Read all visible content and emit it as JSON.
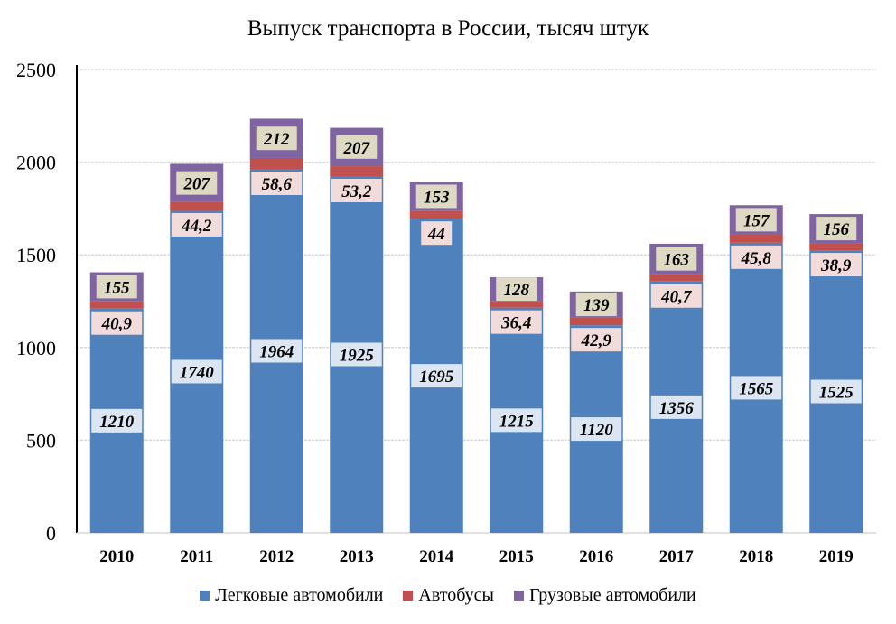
{
  "chart_data": {
    "type": "bar",
    "stacked": true,
    "title": "Выпуск транспорта в России, тысяч штук",
    "xlabel": "",
    "ylabel": "",
    "categories": [
      "2010",
      "2011",
      "2012",
      "2013",
      "2014",
      "2015",
      "2016",
      "2017",
      "2018",
      "2019"
    ],
    "ylim": [
      0,
      2500
    ],
    "yticks": [
      0,
      500,
      1000,
      1500,
      2000,
      2500
    ],
    "grid": true,
    "legend_position": "bottom",
    "series": [
      {
        "name": "Легковые автомобили",
        "color": "#4f81bd",
        "label_bg": "#dce6f2",
        "values": [
          1210,
          1740,
          1964,
          1925,
          1695,
          1215,
          1120,
          1356,
          1565,
          1525
        ],
        "labels": [
          "1210",
          "1740",
          "1964",
          "1925",
          "1695",
          "1215",
          "1120",
          "1356",
          "1565",
          "1525"
        ]
      },
      {
        "name": "Автобусы",
        "color": "#c0504d",
        "label_bg": "#f2dcdb",
        "values": [
          40.9,
          44.2,
          58.6,
          53.2,
          44,
          36.4,
          42.9,
          40.7,
          45.8,
          38.9
        ],
        "labels": [
          "40,9",
          "44,2",
          "58,6",
          "53,2",
          "44",
          "36,4",
          "42,9",
          "40,7",
          "45,8",
          "38,9"
        ]
      },
      {
        "name": "Грузовые автомобили",
        "color": "#8064a2",
        "label_bg": "#ddd9c3",
        "values": [
          155,
          207,
          212,
          207,
          153,
          128,
          139,
          163,
          157,
          156
        ],
        "labels": [
          "155",
          "207",
          "212",
          "207",
          "153",
          "128",
          "139",
          "163",
          "157",
          "156"
        ]
      }
    ]
  }
}
